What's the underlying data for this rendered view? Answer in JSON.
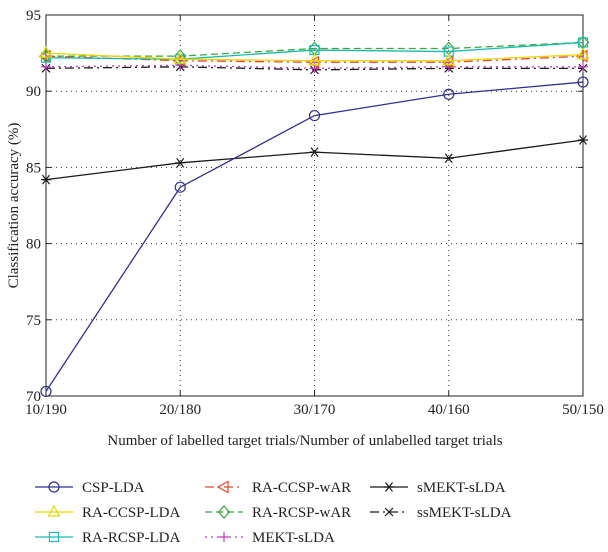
{
  "chart_data": {
    "type": "line",
    "title": "",
    "xlabel": "Number of labelled target trials/Number of unlabelled target trials",
    "ylabel": "Classification accuracy (%)",
    "categories": [
      "10/190",
      "20/180",
      "30/170",
      "40/160",
      "50/150"
    ],
    "ylim": [
      70,
      95
    ],
    "yticks": [
      70,
      75,
      80,
      85,
      90,
      95
    ],
    "grid": true,
    "legend_position": "bottom",
    "series": [
      {
        "name": "CSP-LDA",
        "values": [
          70.3,
          83.7,
          88.4,
          89.8,
          90.6
        ],
        "color": "#2f2f9a",
        "marker": "circle",
        "dash": "solid"
      },
      {
        "name": "RA-CCSP-LDA",
        "values": [
          92.5,
          92.1,
          92.0,
          92.0,
          92.4
        ],
        "color": "#e8d800",
        "marker": "triangle-up",
        "dash": "solid"
      },
      {
        "name": "RA-RCSP-LDA",
        "values": [
          92.2,
          92.1,
          92.7,
          92.6,
          93.2
        ],
        "color": "#1abcab",
        "marker": "square",
        "dash": "solid"
      },
      {
        "name": "RA-CCSP-wAR",
        "values": [
          92.3,
          92.0,
          91.9,
          91.9,
          92.3
        ],
        "color": "#e8452a",
        "marker": "triangle-left",
        "dash": "dashdot"
      },
      {
        "name": "RA-RCSP-wAR",
        "values": [
          92.3,
          92.3,
          92.8,
          92.8,
          93.2
        ],
        "color": "#3aa83a",
        "marker": "diamond",
        "dash": "dashed"
      },
      {
        "name": "MEKT-sLDA",
        "values": [
          91.6,
          91.7,
          91.5,
          91.6,
          91.6
        ],
        "color": "#c43ac4",
        "marker": "plus",
        "dash": "dotted"
      },
      {
        "name": "sMEKT-sLDA",
        "values": [
          84.2,
          85.3,
          86.0,
          85.6,
          86.8
        ],
        "color": "#1a1a1a",
        "marker": "asterisk",
        "dash": "solid"
      },
      {
        "name": "ssMEKT-sLDA",
        "values": [
          91.5,
          91.6,
          91.4,
          91.5,
          91.5
        ],
        "color": "#1a1a1a",
        "marker": "x",
        "dash": "dashdot"
      }
    ]
  }
}
